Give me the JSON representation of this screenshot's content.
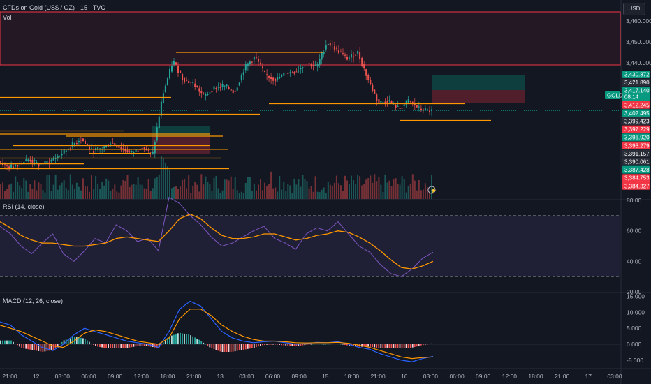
{
  "header": {
    "symbol_title": "CFDs on Gold (US$ / OZ) · 15 · TVC",
    "volume_label": "Vol",
    "rsi_label": "RSI (14, close)",
    "macd_label": "MACD (12, 26, close)",
    "currency_button": "USD"
  },
  "colors": {
    "background": "#131722",
    "bull": "#26a69a",
    "bear": "#ef5350",
    "level_line": "#ff9800",
    "rsi_line": "#7e57c2",
    "rsi_ma": "#ff9800",
    "macd_line": "#2962ff",
    "signal_line": "#ff9800",
    "zone_red": "#b22833",
    "zone_green": "#089981"
  },
  "price_axis": {
    "ticks": [
      "3,460.000",
      "3,450.000",
      "3,440.000"
    ],
    "tags": [
      {
        "text": "3,430.872",
        "color": "#089981"
      },
      {
        "text": "3,421.890",
        "color": "#2a2e39"
      },
      {
        "text": "3,417.140",
        "color": "#089981"
      },
      {
        "text": "08:14",
        "color": "#089981"
      },
      {
        "text": "3,412.245",
        "color": "#f23645"
      },
      {
        "text": "3,402.495",
        "color": "#089981"
      },
      {
        "text": "3,399.423",
        "color": "#2a2e39"
      },
      {
        "text": "3,397.229",
        "color": "#f23645"
      },
      {
        "text": "3,396.920",
        "color": "#089981"
      },
      {
        "text": "3,393.279",
        "color": "#f23645"
      },
      {
        "text": "3,391.157",
        "color": "#2a2e39"
      },
      {
        "text": "3,390.061",
        "color": "#2a2e39"
      },
      {
        "text": "3,387.428",
        "color": "#089981"
      },
      {
        "text": "3,384.753",
        "color": "#f23645"
      },
      {
        "text": "3,384.327",
        "color": "#f23645"
      }
    ],
    "symbol_tag": "GOLD"
  },
  "rsi_axis": {
    "ticks": [
      "80.00",
      "60.00",
      "40.00",
      "20.00"
    ]
  },
  "macd_axis": {
    "ticks": [
      "15.000",
      "10.000",
      "5.000",
      "0.000",
      "-5.000"
    ]
  },
  "time_axis": {
    "labels": [
      "21:00",
      "12",
      "03:00",
      "06:00",
      "09:00",
      "12:00",
      "18:00",
      "21:00",
      "13",
      "03:00",
      "06:00",
      "09:00",
      "15",
      "18:00",
      "21:00",
      "16",
      "03:00",
      "06:00",
      "09:00",
      "12:00",
      "18:00",
      "21:00",
      "17",
      "03:00"
    ]
  },
  "chart_data": [
    {
      "type": "candlestick",
      "title": "CFDs on Gold (US$ / OZ) · 15 · TVC",
      "ylim": [
        3375,
        3470
      ],
      "levels": [
        3445,
        3423.5,
        3420.5,
        3415.5,
        3412.5,
        3407.5,
        3406,
        3405,
        3400.5,
        3398.7,
        3396.8,
        3394.5,
        3391.8,
        3389.5
      ],
      "close_path": [
        3393,
        3390,
        3392,
        3394,
        3391,
        3393,
        3396,
        3400,
        3404,
        3398,
        3399,
        3402,
        3399,
        3397,
        3400,
        3396,
        3425,
        3441,
        3432,
        3430,
        3424,
        3428,
        3429,
        3426,
        3438,
        3443,
        3434,
        3432,
        3435,
        3436,
        3440,
        3438,
        3450,
        3446,
        3442,
        3445,
        3432,
        3421,
        3422,
        3418,
        3422,
        3418,
        3417
      ],
      "last_price": 3417.14
    },
    {
      "type": "line",
      "title": "RSI (14, close)",
      "ylim": [
        20,
        80
      ],
      "bands": [
        30,
        50,
        70
      ],
      "series": [
        {
          "name": "RSI",
          "values": [
            63,
            58,
            50,
            45,
            52,
            58,
            45,
            40,
            47,
            55,
            52,
            64,
            60,
            53,
            55,
            47,
            82,
            78,
            70,
            64,
            56,
            50,
            52,
            56,
            60,
            63,
            55,
            52,
            48,
            58,
            62,
            60,
            66,
            58,
            50,
            46,
            38,
            32,
            30,
            35,
            42,
            46
          ]
        },
        {
          "name": "MA",
          "values": [
            66,
            62,
            57,
            54,
            52,
            52,
            51,
            50,
            50,
            51,
            52,
            55,
            56,
            55,
            54,
            53,
            60,
            68,
            71,
            68,
            62,
            57,
            55,
            55,
            56,
            58,
            58,
            56,
            54,
            55,
            57,
            58,
            60,
            59,
            56,
            52,
            47,
            41,
            36,
            35,
            37,
            40
          ]
        }
      ]
    },
    {
      "type": "line",
      "title": "MACD (12, 26, close)",
      "ylim": [
        -7,
        16
      ],
      "series": [
        {
          "name": "MACD",
          "values": [
            7,
            6,
            3,
            1,
            -1,
            -2,
            0,
            3,
            5,
            4,
            3,
            2,
            1,
            0.5,
            0,
            -1,
            4,
            11,
            13.5,
            12,
            8,
            4,
            2,
            1,
            0.5,
            0.8,
            1,
            0.5,
            0,
            0.2,
            0.6,
            0.5,
            0.8,
            0,
            -1,
            -1.6,
            -3,
            -4,
            -5,
            -5.5,
            -4.5,
            -3.8
          ]
        },
        {
          "name": "Signal",
          "values": [
            6,
            5,
            4,
            2.5,
            1,
            -0.5,
            -1,
            1,
            3.5,
            4.5,
            4,
            3,
            2,
            1,
            0.5,
            0,
            2,
            8,
            11,
            11,
            9,
            6,
            4,
            2.5,
            1.5,
            1,
            1,
            0.8,
            0.5,
            0.4,
            0.5,
            0.5,
            0.6,
            0.3,
            -0.3,
            -1,
            -2,
            -3,
            -4,
            -4.5,
            -4.2,
            -4
          ]
        }
      ]
    }
  ]
}
